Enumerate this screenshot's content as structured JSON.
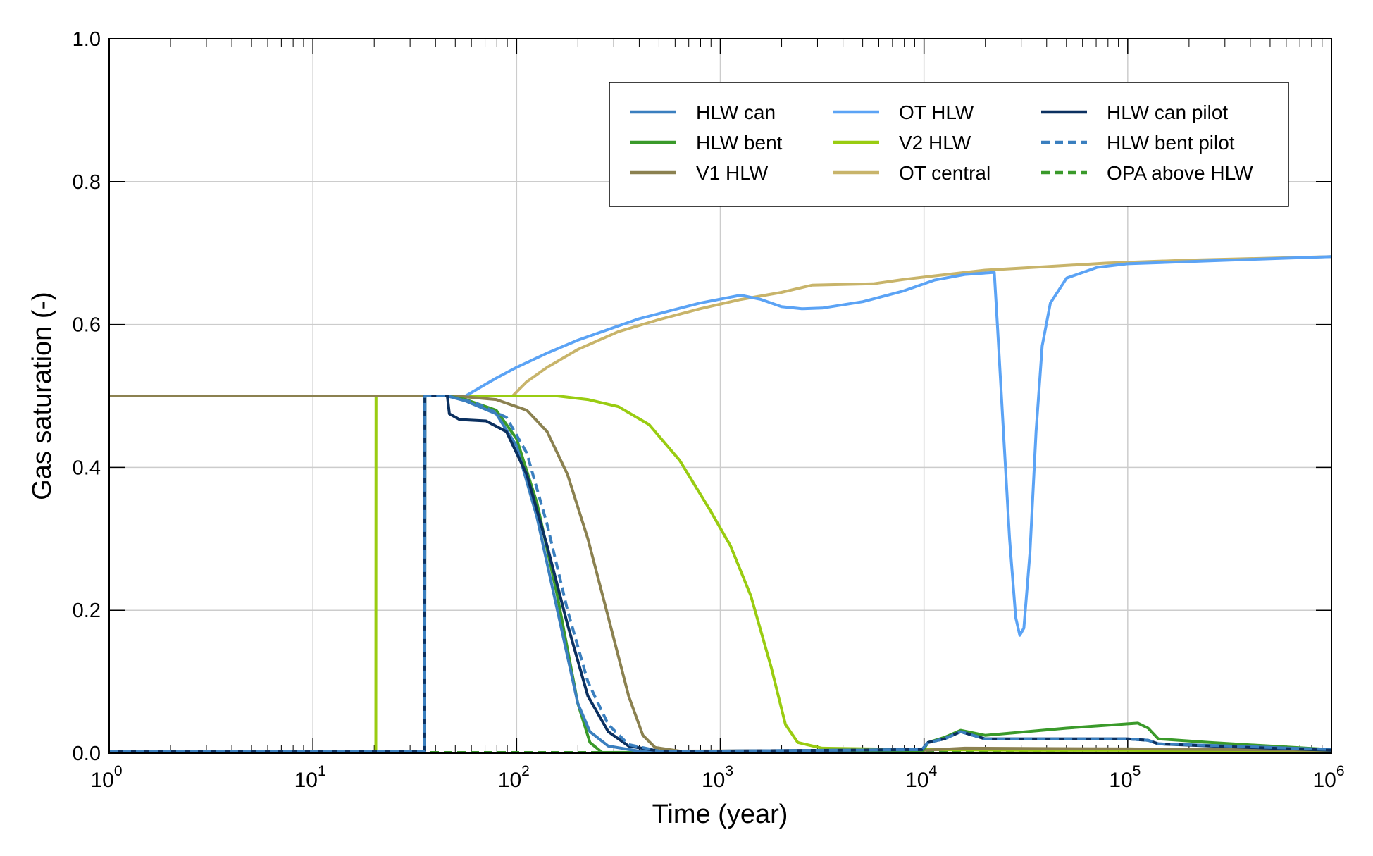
{
  "chart_data": {
    "type": "line",
    "title": "",
    "xlabel": "Time (year)",
    "ylabel": "Gas saturation (-)",
    "xscale": "log",
    "xlim": [
      1,
      1000000
    ],
    "ylim": [
      0,
      1
    ],
    "grid": true,
    "legend_position": "top-right",
    "x_ticks": [
      {
        "base": "10",
        "exp": "0"
      },
      {
        "base": "10",
        "exp": "1"
      },
      {
        "base": "10",
        "exp": "2"
      },
      {
        "base": "10",
        "exp": "3"
      },
      {
        "base": "10",
        "exp": "4"
      },
      {
        "base": "10",
        "exp": "5"
      },
      {
        "base": "10",
        "exp": "6"
      }
    ],
    "y_ticks": [
      "0.0",
      "0.2",
      "0.4",
      "0.6",
      "0.8",
      "1.0"
    ],
    "x_note": "series points given as [log10(time in years), gas saturation]",
    "series": [
      {
        "name": "HLW can",
        "color": "#3a7fbf",
        "dash": false,
        "points": [
          [
            0,
            0.002
          ],
          [
            1.549,
            0.002
          ],
          [
            1.55,
            0.5
          ],
          [
            1.66,
            0.5
          ],
          [
            1.75,
            0.493
          ],
          [
            1.9,
            0.475
          ],
          [
            2.0,
            0.43
          ],
          [
            2.1,
            0.33
          ],
          [
            2.2,
            0.2
          ],
          [
            2.3,
            0.07
          ],
          [
            2.36,
            0.03
          ],
          [
            2.45,
            0.01
          ],
          [
            2.6,
            0.003
          ],
          [
            3.0,
            0.003
          ],
          [
            3.99,
            0.005
          ],
          [
            4.02,
            0.015
          ],
          [
            4.1,
            0.02
          ],
          [
            4.18,
            0.03
          ],
          [
            4.3,
            0.02
          ],
          [
            4.6,
            0.02
          ],
          [
            5.0,
            0.02
          ],
          [
            5.1,
            0.018
          ],
          [
            5.15,
            0.013
          ],
          [
            5.5,
            0.01
          ],
          [
            6.0,
            0.005
          ]
        ]
      },
      {
        "name": "HLW bent",
        "color": "#3a9a2a",
        "dash": false,
        "points": [
          [
            0,
            0.002
          ],
          [
            1.549,
            0.002
          ],
          [
            1.55,
            0.5
          ],
          [
            1.66,
            0.5
          ],
          [
            1.75,
            0.495
          ],
          [
            1.9,
            0.48
          ],
          [
            2.0,
            0.44
          ],
          [
            2.1,
            0.35
          ],
          [
            2.2,
            0.22
          ],
          [
            2.3,
            0.07
          ],
          [
            2.36,
            0.015
          ],
          [
            2.42,
            0.001
          ],
          [
            3.99,
            0.002
          ],
          [
            4.02,
            0.015
          ],
          [
            4.1,
            0.022
          ],
          [
            4.18,
            0.032
          ],
          [
            4.3,
            0.025
          ],
          [
            4.5,
            0.03
          ],
          [
            4.7,
            0.035
          ],
          [
            4.95,
            0.04
          ],
          [
            5.05,
            0.042
          ],
          [
            5.1,
            0.035
          ],
          [
            5.15,
            0.02
          ],
          [
            5.4,
            0.015
          ],
          [
            5.7,
            0.01
          ],
          [
            6.0,
            0.005
          ]
        ]
      },
      {
        "name": "V1 HLW",
        "color": "#8b8150",
        "dash": false,
        "points": [
          [
            0,
            0.5
          ],
          [
            1.7,
            0.5
          ],
          [
            1.9,
            0.495
          ],
          [
            2.05,
            0.48
          ],
          [
            2.15,
            0.45
          ],
          [
            2.25,
            0.39
          ],
          [
            2.35,
            0.3
          ],
          [
            2.45,
            0.19
          ],
          [
            2.55,
            0.08
          ],
          [
            2.62,
            0.025
          ],
          [
            2.68,
            0.008
          ],
          [
            2.8,
            0.003
          ],
          [
            4.0,
            0.004
          ],
          [
            4.2,
            0.007
          ],
          [
            5.0,
            0.006
          ],
          [
            6.0,
            0.004
          ]
        ]
      },
      {
        "name": "OT HLW",
        "color": "#5ba3f5",
        "dash": false,
        "points": [
          [
            0,
            0.5
          ],
          [
            1.75,
            0.5
          ],
          [
            1.9,
            0.525
          ],
          [
            2.0,
            0.54
          ],
          [
            2.15,
            0.56
          ],
          [
            2.3,
            0.578
          ],
          [
            2.6,
            0.608
          ],
          [
            2.9,
            0.63
          ],
          [
            3.1,
            0.641
          ],
          [
            3.2,
            0.635
          ],
          [
            3.3,
            0.625
          ],
          [
            3.4,
            0.622
          ],
          [
            3.5,
            0.623
          ],
          [
            3.7,
            0.632
          ],
          [
            3.9,
            0.647
          ],
          [
            4.05,
            0.662
          ],
          [
            4.2,
            0.67
          ],
          [
            4.345,
            0.673
          ],
          [
            4.36,
            0.6
          ],
          [
            4.39,
            0.45
          ],
          [
            4.42,
            0.3
          ],
          [
            4.45,
            0.19
          ],
          [
            4.47,
            0.165
          ],
          [
            4.49,
            0.175
          ],
          [
            4.52,
            0.28
          ],
          [
            4.55,
            0.45
          ],
          [
            4.58,
            0.57
          ],
          [
            4.62,
            0.63
          ],
          [
            4.7,
            0.665
          ],
          [
            4.85,
            0.68
          ],
          [
            5.0,
            0.685
          ],
          [
            5.5,
            0.69
          ],
          [
            6.0,
            0.695
          ]
        ]
      },
      {
        "name": "V2 HLW",
        "color": "#99cc11",
        "dash": false,
        "points": [
          [
            0,
            0.002
          ],
          [
            1.309,
            0.002
          ],
          [
            1.31,
            0.5
          ],
          [
            2.2,
            0.5
          ],
          [
            2.35,
            0.495
          ],
          [
            2.5,
            0.485
          ],
          [
            2.65,
            0.46
          ],
          [
            2.8,
            0.41
          ],
          [
            2.95,
            0.34
          ],
          [
            3.05,
            0.29
          ],
          [
            3.15,
            0.22
          ],
          [
            3.25,
            0.12
          ],
          [
            3.32,
            0.04
          ],
          [
            3.38,
            0.015
          ],
          [
            3.5,
            0.007
          ],
          [
            4.0,
            0.005
          ],
          [
            4.5,
            0.004
          ],
          [
            5.0,
            0.004
          ],
          [
            6.0,
            0.003
          ]
        ]
      },
      {
        "name": "OT central",
        "color": "#c8b46a",
        "dash": false,
        "points": [
          [
            0,
            0.5
          ],
          [
            1.98,
            0.5
          ],
          [
            2.05,
            0.52
          ],
          [
            2.15,
            0.54
          ],
          [
            2.3,
            0.565
          ],
          [
            2.5,
            0.59
          ],
          [
            2.7,
            0.607
          ],
          [
            2.9,
            0.622
          ],
          [
            3.1,
            0.635
          ],
          [
            3.3,
            0.645
          ],
          [
            3.45,
            0.655
          ],
          [
            3.6,
            0.656
          ],
          [
            3.75,
            0.657
          ],
          [
            3.9,
            0.663
          ],
          [
            4.05,
            0.668
          ],
          [
            4.3,
            0.676
          ],
          [
            4.6,
            0.681
          ],
          [
            4.9,
            0.686
          ],
          [
            5.3,
            0.69
          ],
          [
            6.0,
            0.695
          ]
        ]
      },
      {
        "name": "HLW can pilot",
        "color": "#0b3060",
        "dash": false,
        "points": [
          [
            0,
            0.002
          ],
          [
            1.549,
            0.002
          ],
          [
            1.55,
            0.5
          ],
          [
            1.66,
            0.5
          ],
          [
            1.67,
            0.475
          ],
          [
            1.72,
            0.467
          ],
          [
            1.85,
            0.465
          ],
          [
            1.95,
            0.45
          ],
          [
            2.05,
            0.39
          ],
          [
            2.15,
            0.29
          ],
          [
            2.25,
            0.18
          ],
          [
            2.35,
            0.08
          ],
          [
            2.45,
            0.03
          ],
          [
            2.55,
            0.01
          ],
          [
            2.7,
            0.003
          ],
          [
            3.0,
            0.003
          ],
          [
            3.99,
            0.005
          ],
          [
            4.02,
            0.015
          ],
          [
            4.1,
            0.02
          ],
          [
            4.18,
            0.03
          ],
          [
            4.3,
            0.02
          ],
          [
            5.0,
            0.02
          ],
          [
            5.1,
            0.018
          ],
          [
            5.15,
            0.013
          ],
          [
            5.5,
            0.009
          ],
          [
            6.0,
            0.004
          ]
        ]
      },
      {
        "name": "HLW bent pilot",
        "color": "#3a7fbf",
        "dash": true,
        "points": [
          [
            0,
            0.002
          ],
          [
            1.549,
            0.002
          ],
          [
            1.55,
            0.5
          ],
          [
            1.66,
            0.5
          ],
          [
            1.8,
            0.49
          ],
          [
            1.95,
            0.47
          ],
          [
            2.05,
            0.42
          ],
          [
            2.15,
            0.32
          ],
          [
            2.25,
            0.2
          ],
          [
            2.35,
            0.1
          ],
          [
            2.45,
            0.04
          ],
          [
            2.55,
            0.012
          ],
          [
            2.7,
            0.003
          ],
          [
            3.0,
            0.003
          ],
          [
            3.99,
            0.005
          ],
          [
            4.02,
            0.015
          ],
          [
            4.1,
            0.02
          ],
          [
            4.18,
            0.03
          ],
          [
            4.3,
            0.02
          ],
          [
            5.0,
            0.02
          ],
          [
            5.1,
            0.018
          ],
          [
            5.15,
            0.013
          ],
          [
            5.5,
            0.01
          ],
          [
            6.0,
            0.005
          ]
        ]
      },
      {
        "name": "OPA above HLW",
        "color": "#3a9a2a",
        "dash": true,
        "points": [
          [
            0,
            0.001
          ],
          [
            4.5,
            0.001
          ],
          [
            4.7,
            0.004
          ],
          [
            5.0,
            0.006
          ],
          [
            6.0,
            0.004
          ]
        ]
      }
    ]
  }
}
